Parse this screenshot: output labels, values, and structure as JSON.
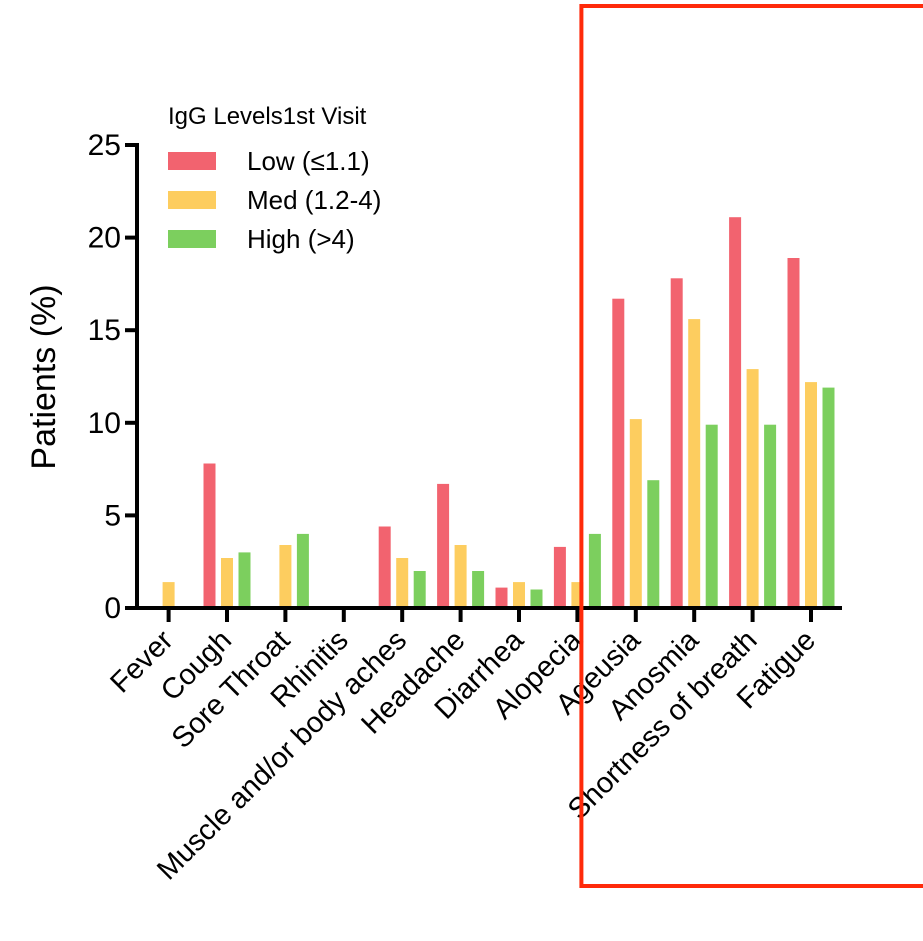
{
  "chart_data": {
    "type": "bar",
    "title": "",
    "xlabel": "",
    "ylabel": "Patients (%)",
    "ylim": [
      0,
      25
    ],
    "yticks": [
      0,
      5,
      10,
      15,
      20,
      25
    ],
    "grid": false,
    "legend": {
      "title": "IgG Levels1st Visit",
      "position": "top-left"
    },
    "categories": [
      "Fever",
      "Cough",
      "Sore Throat",
      "Rhinitis",
      "Muscle and/or body aches",
      "Headache",
      "Diarrhea",
      "Alopecia",
      "Ageusia",
      "Anosmia",
      "Shortness of breath",
      "Fatigue"
    ],
    "series": [
      {
        "name": "Low (≤1.1)",
        "color": "#f2636f",
        "values": [
          0,
          7.8,
          0,
          0,
          4.4,
          6.7,
          1.1,
          3.3,
          16.7,
          17.8,
          21.1,
          18.9
        ]
      },
      {
        "name": "Med (1.2-4)",
        "color": "#fdcd5f",
        "values": [
          1.4,
          2.7,
          3.4,
          0,
          2.7,
          3.4,
          1.4,
          1.4,
          10.2,
          15.6,
          12.9,
          12.2
        ]
      },
      {
        "name": "High (>4)",
        "color": "#7ccf5e",
        "values": [
          0,
          3.0,
          4.0,
          0,
          2.0,
          2.0,
          1.0,
          4.0,
          6.9,
          9.9,
          9.9,
          11.9
        ]
      }
    ],
    "annotation": {
      "type": "highlight-box",
      "color": "#ff2a0a",
      "from_category": "Alopecia",
      "to_category": "Fatigue"
    }
  }
}
